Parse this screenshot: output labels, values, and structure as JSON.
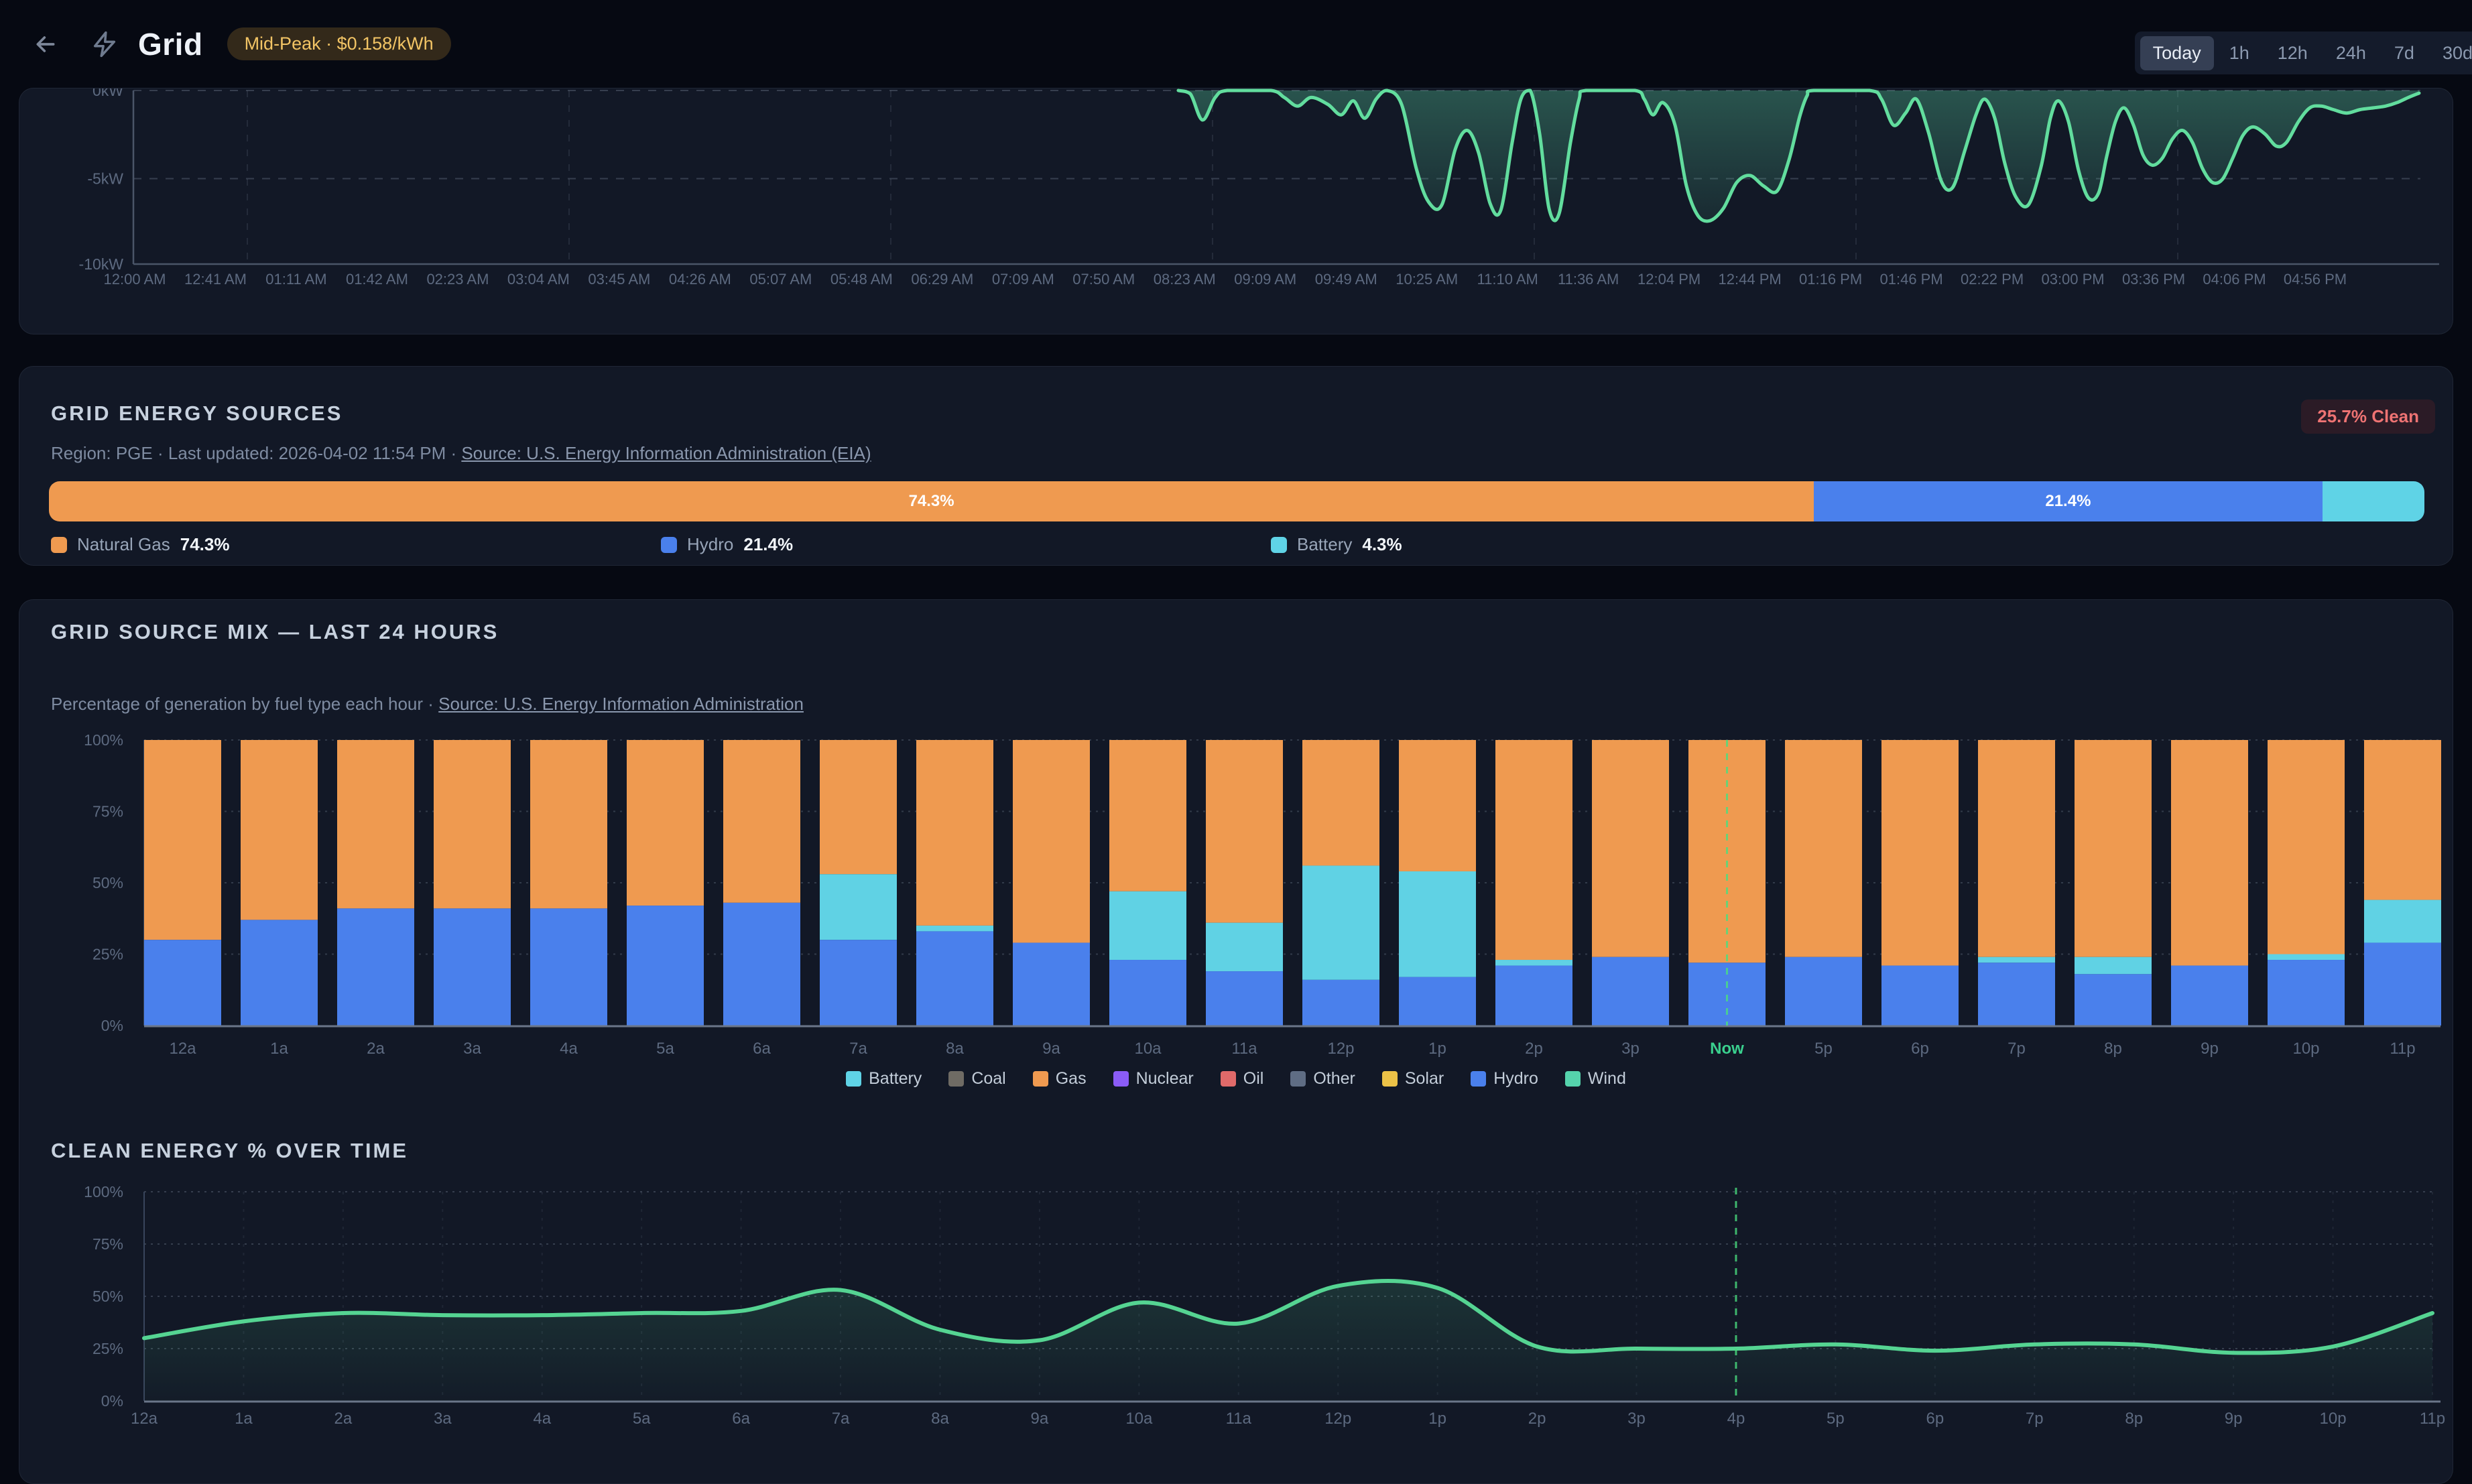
{
  "colors": {
    "page_bg": "#060912",
    "card_bg": "#121826",
    "gas": "#ef9a50",
    "hydro": "#4a80ec",
    "battery": "#60d2e4",
    "power_line": "#62dd9e",
    "clean_line": "#55d492",
    "now_marker": "#3ad08e",
    "clean_badge_text": "#ee7373",
    "peak_badge_text": "#f2c465",
    "tick_text": "#5d6a80"
  },
  "header": {
    "title": "Grid",
    "badge": "Mid-Peak · $0.158/kWh",
    "ranges": [
      "Today",
      "1h",
      "12h",
      "24h",
      "7d",
      "30d"
    ],
    "active_range": "Today"
  },
  "energy_sources": {
    "title": "GRID ENERGY SOURCES",
    "meta_prefix": "Region: PGE · Last updated: 2026-04-02 11:54 PM · ",
    "meta_link": "Source: U.S. Energy Information Administration (EIA)",
    "clean_badge": "25.7% Clean",
    "segments": [
      {
        "label": "Natural Gas",
        "pct": 74.3,
        "pct_label": "74.3%",
        "color": "#ef9a50",
        "show_pct": true
      },
      {
        "label": "Hydro",
        "pct": 21.4,
        "pct_label": "21.4%",
        "color": "#4a80ec",
        "show_pct": true
      },
      {
        "label": "Battery",
        "pct": 4.3,
        "pct_label": "4.3%",
        "color": "#5fd3e6",
        "show_pct": false
      }
    ]
  },
  "source_mix": {
    "title": "GRID SOURCE MIX — LAST 24 HOURS",
    "subtitle_prefix": "Percentage of generation by fuel type each hour · ",
    "subtitle_link": "Source: U.S. Energy Information Administration",
    "legend": [
      {
        "label": "Battery",
        "color": "#5fd3e6"
      },
      {
        "label": "Coal",
        "color": "#6f6b64"
      },
      {
        "label": "Gas",
        "color": "#ef9a50"
      },
      {
        "label": "Nuclear",
        "color": "#8b5cf6"
      },
      {
        "label": "Oil",
        "color": "#e06a6a"
      },
      {
        "label": "Other",
        "color": "#5f6d84"
      },
      {
        "label": "Solar",
        "color": "#ecc247"
      },
      {
        "label": "Hydro",
        "color": "#4a80ec"
      },
      {
        "label": "Wind",
        "color": "#55d3ac"
      }
    ]
  },
  "clean_energy": {
    "title": "CLEAN ENERGY % OVER TIME"
  },
  "chart_data": [
    {
      "type": "area",
      "name": "grid-power-today",
      "ylabel": "kW",
      "ylim": [
        -10,
        0
      ],
      "y_ticks": [
        "0kW",
        "-5kW",
        "-10kW"
      ],
      "x_ticks": [
        "12:00 AM",
        "12:41 AM",
        "01:11 AM",
        "01:42 AM",
        "02:23 AM",
        "03:04 AM",
        "03:45 AM",
        "04:26 AM",
        "05:07 AM",
        "05:48 AM",
        "06:29 AM",
        "07:09 AM",
        "07:50 AM",
        "08:23 AM",
        "09:09 AM",
        "09:49 AM",
        "10:25 AM",
        "11:10 AM",
        "11:36 AM",
        "12:04 PM",
        "12:44 PM",
        "01:16 PM",
        "01:46 PM",
        "02:22 PM",
        "03:00 PM",
        "03:36 PM",
        "04:06 PM",
        "04:56 PM"
      ],
      "line_color": "#62dd9e",
      "points_x_kw": [
        [
          1757,
          0
        ],
        [
          1775,
          -0.2
        ],
        [
          1793,
          -1.7
        ],
        [
          1812,
          -0.4
        ],
        [
          1830,
          0
        ],
        [
          1895,
          0
        ],
        [
          1915,
          -0.4
        ],
        [
          1935,
          -0.9
        ],
        [
          1955,
          -0.4
        ],
        [
          1980,
          -0.8
        ],
        [
          2000,
          -1.4
        ],
        [
          2018,
          -0.6
        ],
        [
          2035,
          -1.6
        ],
        [
          2052,
          -0.5
        ],
        [
          2068,
          0
        ],
        [
          2090,
          -0.8
        ],
        [
          2112,
          -4.5
        ],
        [
          2130,
          -6.4
        ],
        [
          2150,
          -6.6
        ],
        [
          2170,
          -3.4
        ],
        [
          2188,
          -2.3
        ],
        [
          2205,
          -3.6
        ],
        [
          2222,
          -6.5
        ],
        [
          2238,
          -6.9
        ],
        [
          2255,
          -3.0
        ],
        [
          2268,
          -0.5
        ],
        [
          2282,
          0
        ],
        [
          2296,
          -2.5
        ],
        [
          2310,
          -6.8
        ],
        [
          2325,
          -7.1
        ],
        [
          2342,
          -3.0
        ],
        [
          2355,
          -0.5
        ],
        [
          2365,
          0
        ],
        [
          2438,
          0
        ],
        [
          2452,
          -0.5
        ],
        [
          2465,
          -1.4
        ],
        [
          2480,
          -0.7
        ],
        [
          2498,
          -2.0
        ],
        [
          2515,
          -5.5
        ],
        [
          2532,
          -7.2
        ],
        [
          2550,
          -7.5
        ],
        [
          2570,
          -6.8
        ],
        [
          2590,
          -5.3
        ],
        [
          2610,
          -4.9
        ],
        [
          2630,
          -5.5
        ],
        [
          2650,
          -5.8
        ],
        [
          2668,
          -4.0
        ],
        [
          2684,
          -1.5
        ],
        [
          2695,
          -0.3
        ],
        [
          2705,
          0
        ],
        [
          2788,
          0
        ],
        [
          2806,
          -0.5
        ],
        [
          2824,
          -2.0
        ],
        [
          2842,
          -1.3
        ],
        [
          2858,
          -0.5
        ],
        [
          2876,
          -2.4
        ],
        [
          2895,
          -5.2
        ],
        [
          2912,
          -5.6
        ],
        [
          2930,
          -3.5
        ],
        [
          2947,
          -1.4
        ],
        [
          2960,
          -0.5
        ],
        [
          2975,
          -1.6
        ],
        [
          2990,
          -4.2
        ],
        [
          3006,
          -6.1
        ],
        [
          3025,
          -6.6
        ],
        [
          3044,
          -4.4
        ],
        [
          3058,
          -1.6
        ],
        [
          3070,
          -0.6
        ],
        [
          3085,
          -1.8
        ],
        [
          3100,
          -4.6
        ],
        [
          3115,
          -6.2
        ],
        [
          3130,
          -5.9
        ],
        [
          3142,
          -3.8
        ],
        [
          3155,
          -1.8
        ],
        [
          3168,
          -1.0
        ],
        [
          3182,
          -2.0
        ],
        [
          3196,
          -3.7
        ],
        [
          3210,
          -4.3
        ],
        [
          3225,
          -3.9
        ],
        [
          3240,
          -2.8
        ],
        [
          3255,
          -2.3
        ],
        [
          3270,
          -3.0
        ],
        [
          3285,
          -4.5
        ],
        [
          3300,
          -5.3
        ],
        [
          3315,
          -5.1
        ],
        [
          3330,
          -3.9
        ],
        [
          3345,
          -2.6
        ],
        [
          3360,
          -2.1
        ],
        [
          3378,
          -2.5
        ],
        [
          3395,
          -3.2
        ],
        [
          3410,
          -3.0
        ],
        [
          3428,
          -1.8
        ],
        [
          3445,
          -1.0
        ],
        [
          3462,
          -0.9
        ],
        [
          3480,
          -1.1
        ],
        [
          3500,
          -1.3
        ],
        [
          3520,
          -1.1
        ],
        [
          3540,
          -1.0
        ],
        [
          3558,
          -0.9
        ],
        [
          3575,
          -0.7
        ],
        [
          3592,
          -0.4
        ],
        [
          3608,
          -0.15
        ]
      ]
    },
    {
      "type": "bar",
      "name": "grid-source-mix-last-24-hours",
      "stacked": true,
      "ylim": [
        0,
        100
      ],
      "y_ticks": [
        "100%",
        "75%",
        "50%",
        "25%",
        "0%"
      ],
      "categories": [
        "12a",
        "1a",
        "2a",
        "3a",
        "4a",
        "5a",
        "6a",
        "7a",
        "8a",
        "9a",
        "10a",
        "11a",
        "12p",
        "1p",
        "2p",
        "3p",
        "Now",
        "5p",
        "6p",
        "7p",
        "8p",
        "9p",
        "10p",
        "11p"
      ],
      "now_index": 16,
      "series": [
        {
          "name": "Hydro",
          "color": "#4a80ec",
          "values": [
            30,
            37,
            41,
            41,
            41,
            42,
            43,
            30,
            33,
            29,
            23,
            19,
            16,
            17,
            21,
            24,
            22,
            24,
            21,
            22,
            18,
            21,
            23,
            29
          ]
        },
        {
          "name": "Battery",
          "color": "#60d2e4",
          "values": [
            0,
            0,
            0,
            0,
            0,
            0,
            0,
            23,
            2,
            0,
            24,
            17,
            40,
            37,
            2,
            0,
            0,
            0,
            0,
            2,
            6,
            0,
            2,
            15
          ]
        },
        {
          "name": "Gas",
          "color": "#ef9a50",
          "values": [
            70,
            63,
            59,
            59,
            59,
            58,
            57,
            47,
            65,
            71,
            53,
            64,
            44,
            46,
            77,
            76,
            78,
            76,
            79,
            76,
            76,
            79,
            75,
            56
          ]
        }
      ]
    },
    {
      "type": "line",
      "name": "clean-energy-percent-over-time",
      "ylim": [
        0,
        100
      ],
      "y_ticks": [
        "100%",
        "75%",
        "50%",
        "25%",
        "0%"
      ],
      "categories": [
        "12a",
        "1a",
        "2a",
        "3a",
        "4a",
        "5a",
        "6a",
        "7a",
        "8a",
        "9a",
        "10a",
        "11a",
        "12p",
        "1p",
        "2p",
        "3p",
        "4p",
        "5p",
        "6p",
        "7p",
        "8p",
        "9p",
        "10p",
        "11p"
      ],
      "now_index": 16,
      "line_color": "#55d492",
      "values": [
        30,
        38,
        42,
        41,
        41,
        42,
        43,
        53,
        34,
        29,
        47,
        37,
        55,
        54,
        26,
        25,
        25,
        27,
        24,
        27,
        27,
        23,
        26,
        42
      ]
    }
  ]
}
